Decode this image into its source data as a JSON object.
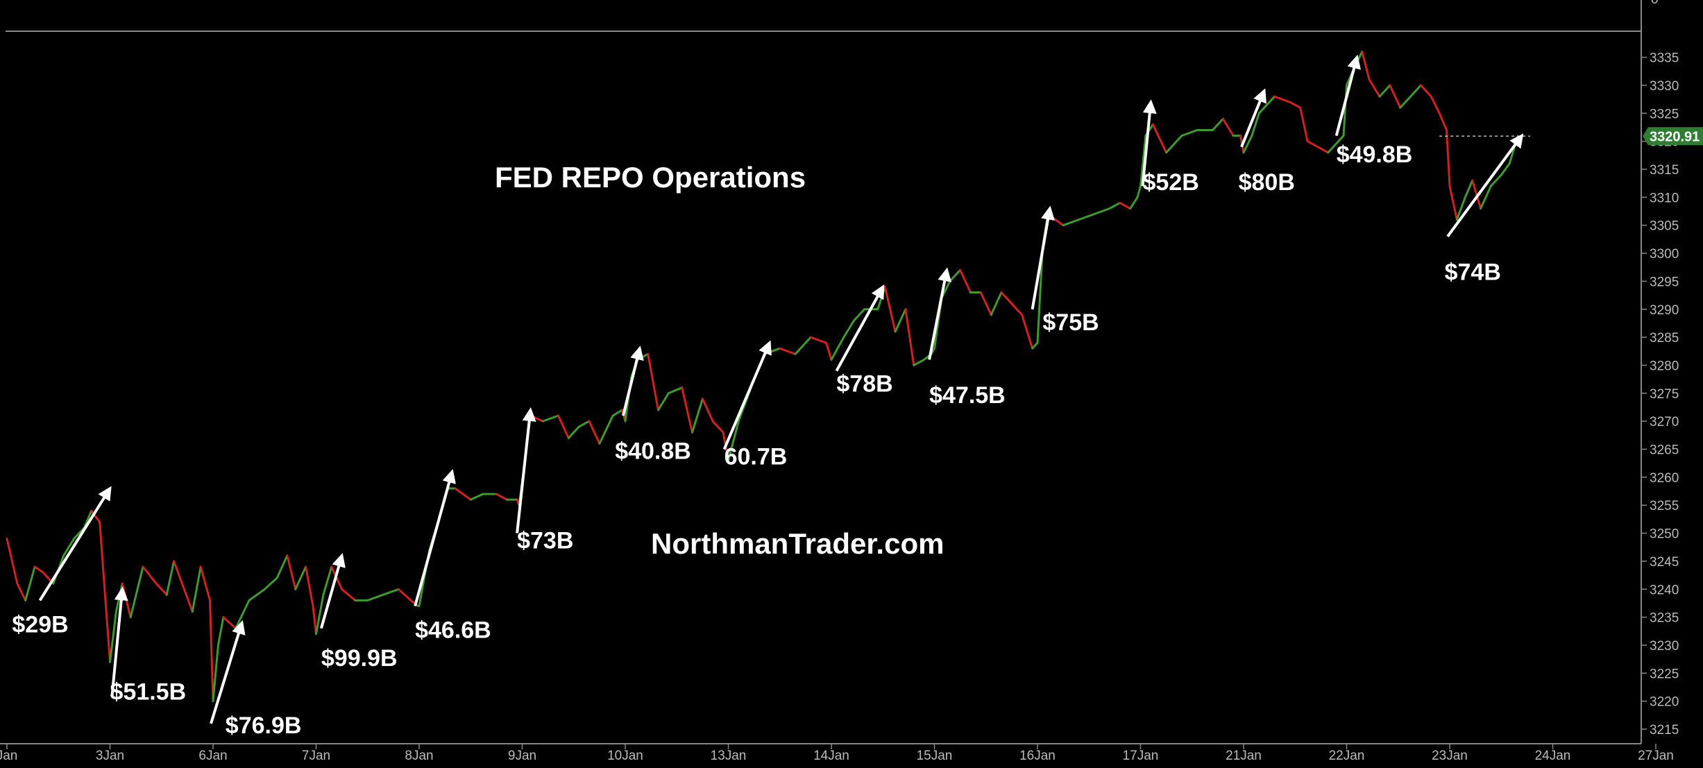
{
  "chart_data": {
    "type": "line",
    "title": "FED REPO Operations",
    "watermark": "NorthmanTrader.com",
    "ylim": [
      3213,
      3340
    ],
    "y_ticks": [
      3215,
      3220,
      3225,
      3230,
      3235,
      3240,
      3245,
      3250,
      3255,
      3260,
      3265,
      3270,
      3275,
      3280,
      3285,
      3290,
      3295,
      3300,
      3305,
      3310,
      3315,
      3320,
      3325,
      3330,
      3335
    ],
    "top_partial_tick": "0",
    "x_ticks": [
      "Jan",
      "3Jan",
      "6Jan",
      "7Jan",
      "8Jan",
      "9Jan",
      "10Jan",
      "13Jan",
      "14Jan",
      "15Jan",
      "16Jan",
      "17Jan",
      "21Jan",
      "22Jan",
      "23Jan",
      "24Jan",
      "27Jan"
    ],
    "last_price": "3320.91",
    "colors": {
      "up": "#3f9b2e",
      "down": "#d32020",
      "text": "#ffffff",
      "axis": "#bbbbbb",
      "price_tag_bg": "#2e7d32"
    },
    "price_path": [
      [
        0.0,
        3249
      ],
      [
        0.1,
        3241
      ],
      [
        0.18,
        3238
      ],
      [
        0.27,
        3244
      ],
      [
        0.35,
        3243
      ],
      [
        0.45,
        3241
      ],
      [
        0.55,
        3246
      ],
      [
        0.65,
        3249
      ],
      [
        0.75,
        3251
      ],
      [
        0.82,
        3254
      ],
      [
        0.9,
        3252
      ],
      [
        1.0,
        3227
      ],
      [
        1.06,
        3236
      ],
      [
        1.12,
        3241
      ],
      [
        1.2,
        3235
      ],
      [
        1.32,
        3244
      ],
      [
        1.45,
        3241
      ],
      [
        1.55,
        3239
      ],
      [
        1.62,
        3245
      ],
      [
        1.7,
        3241
      ],
      [
        1.8,
        3236
      ],
      [
        1.88,
        3244
      ],
      [
        1.97,
        3238
      ],
      [
        2.0,
        3220
      ],
      [
        2.05,
        3230
      ],
      [
        2.1,
        3235
      ],
      [
        2.22,
        3233
      ],
      [
        2.35,
        3238
      ],
      [
        2.5,
        3240
      ],
      [
        2.62,
        3242
      ],
      [
        2.72,
        3246
      ],
      [
        2.8,
        3240
      ],
      [
        2.9,
        3244
      ],
      [
        2.97,
        3237
      ],
      [
        3.0,
        3232
      ],
      [
        3.07,
        3239
      ],
      [
        3.15,
        3244
      ],
      [
        3.25,
        3240
      ],
      [
        3.38,
        3238
      ],
      [
        3.5,
        3238
      ],
      [
        3.65,
        3239
      ],
      [
        3.8,
        3240
      ],
      [
        3.92,
        3238
      ],
      [
        3.99,
        3237
      ],
      [
        4.0,
        3237
      ],
      [
        4.1,
        3247
      ],
      [
        4.2,
        3253
      ],
      [
        4.28,
        3258
      ],
      [
        4.35,
        3258
      ],
      [
        4.5,
        3256
      ],
      [
        4.62,
        3257
      ],
      [
        4.75,
        3257
      ],
      [
        4.85,
        3256
      ],
      [
        4.95,
        3256
      ],
      [
        4.97,
        3255
      ],
      [
        5.02,
        3262
      ],
      [
        5.08,
        3271
      ],
      [
        5.2,
        3270
      ],
      [
        5.35,
        3271
      ],
      [
        5.45,
        3267
      ],
      [
        5.55,
        3269
      ],
      [
        5.65,
        3270
      ],
      [
        5.75,
        3266
      ],
      [
        5.88,
        3271
      ],
      [
        5.97,
        3272
      ],
      [
        6.0,
        3270
      ],
      [
        6.06,
        3278
      ],
      [
        6.12,
        3281
      ],
      [
        6.22,
        3282
      ],
      [
        6.32,
        3272
      ],
      [
        6.42,
        3275
      ],
      [
        6.55,
        3276
      ],
      [
        6.65,
        3268
      ],
      [
        6.75,
        3274
      ],
      [
        6.85,
        3270
      ],
      [
        6.95,
        3268
      ],
      [
        7.0,
        3263
      ],
      [
        7.1,
        3270
      ],
      [
        7.22,
        3276
      ],
      [
        7.35,
        3282
      ],
      [
        7.5,
        3283
      ],
      [
        7.65,
        3282
      ],
      [
        7.8,
        3285
      ],
      [
        7.95,
        3284
      ],
      [
        8.0,
        3281
      ],
      [
        8.12,
        3285
      ],
      [
        8.22,
        3288
      ],
      [
        8.32,
        3290
      ],
      [
        8.45,
        3290
      ],
      [
        8.52,
        3294
      ],
      [
        8.62,
        3286
      ],
      [
        8.72,
        3290
      ],
      [
        8.8,
        3280
      ],
      [
        8.9,
        3281
      ],
      [
        8.97,
        3282
      ],
      [
        9.0,
        3283
      ],
      [
        9.07,
        3292
      ],
      [
        9.15,
        3295
      ],
      [
        9.25,
        3297
      ],
      [
        9.35,
        3293
      ],
      [
        9.45,
        3293
      ],
      [
        9.55,
        3289
      ],
      [
        9.65,
        3293
      ],
      [
        9.75,
        3291
      ],
      [
        9.85,
        3289
      ],
      [
        9.95,
        3283
      ],
      [
        10.0,
        3284
      ],
      [
        10.05,
        3301
      ],
      [
        10.1,
        3307
      ],
      [
        10.25,
        3305
      ],
      [
        10.4,
        3306
      ],
      [
        10.55,
        3307
      ],
      [
        10.7,
        3308
      ],
      [
        10.8,
        3309
      ],
      [
        10.9,
        3308
      ],
      [
        10.97,
        3310
      ],
      [
        11.0,
        3312
      ],
      [
        11.05,
        3321
      ],
      [
        11.12,
        3323
      ],
      [
        11.25,
        3318
      ],
      [
        11.4,
        3321
      ],
      [
        11.55,
        3322
      ],
      [
        11.7,
        3322
      ],
      [
        11.8,
        3324
      ],
      [
        11.9,
        3321
      ],
      [
        11.97,
        3321
      ],
      [
        12.0,
        3318
      ],
      [
        12.08,
        3321
      ],
      [
        12.15,
        3325
      ],
      [
        12.3,
        3328
      ],
      [
        12.45,
        3327
      ],
      [
        12.55,
        3326
      ],
      [
        12.62,
        3320
      ],
      [
        12.72,
        3319
      ],
      [
        12.82,
        3318
      ],
      [
        12.97,
        3321
      ],
      [
        13.0,
        3330
      ],
      [
        13.07,
        3333
      ],
      [
        13.15,
        3336
      ],
      [
        13.22,
        3331
      ],
      [
        13.32,
        3328
      ],
      [
        13.42,
        3330
      ],
      [
        13.52,
        3326
      ],
      [
        13.62,
        3328
      ],
      [
        13.72,
        3330
      ],
      [
        13.82,
        3328
      ],
      [
        13.9,
        3325
      ],
      [
        13.97,
        3322
      ],
      [
        14.0,
        3312
      ],
      [
        14.07,
        3306
      ],
      [
        14.15,
        3310
      ],
      [
        14.22,
        3313
      ],
      [
        14.3,
        3308
      ],
      [
        14.4,
        3312
      ],
      [
        14.5,
        3314
      ],
      [
        14.58,
        3316
      ],
      [
        14.66,
        3320.91
      ]
    ],
    "annotations": [
      {
        "label": "$29B",
        "from": [
          0.32,
          3238
        ],
        "to": [
          1.0,
          3258
        ],
        "label_at": [
          0.05,
          3234
        ]
      },
      {
        "label": "$51.5B",
        "from": [
          1.02,
          3221
        ],
        "to": [
          1.12,
          3240
        ],
        "label_at": [
          1.0,
          3222
        ]
      },
      {
        "label": "$76.9B",
        "from": [
          1.98,
          3216
        ],
        "to": [
          2.28,
          3234
        ],
        "label_at": [
          2.12,
          3216
        ]
      },
      {
        "label": "$99.9B",
        "from": [
          3.05,
          3233
        ],
        "to": [
          3.25,
          3246
        ],
        "label_at": [
          3.05,
          3228
        ]
      },
      {
        "label": "$46.6B",
        "from": [
          3.96,
          3237
        ],
        "to": [
          4.32,
          3261
        ],
        "label_at": [
          3.96,
          3233
        ]
      },
      {
        "label": "$73B",
        "from": [
          4.95,
          3250
        ],
        "to": [
          5.08,
          3272
        ],
        "label_at": [
          4.95,
          3249
        ]
      },
      {
        "label": "$40.8B",
        "from": [
          5.98,
          3271
        ],
        "to": [
          6.14,
          3283
        ],
        "label_at": [
          5.9,
          3265
        ]
      },
      {
        "label": "60.7B",
        "from": [
          6.96,
          3265
        ],
        "to": [
          7.4,
          3284
        ],
        "label_at": [
          6.96,
          3264
        ]
      },
      {
        "label": "$78B",
        "from": [
          8.05,
          3279
        ],
        "to": [
          8.5,
          3294
        ],
        "label_at": [
          8.05,
          3277
        ]
      },
      {
        "label": "$47.5B",
        "from": [
          8.95,
          3281
        ],
        "to": [
          9.12,
          3297
        ],
        "label_at": [
          8.95,
          3275
        ]
      },
      {
        "label": "$75B",
        "from": [
          9.95,
          3290
        ],
        "to": [
          10.12,
          3308
        ],
        "label_at": [
          10.05,
          3288
        ]
      },
      {
        "label": "$52B",
        "from": [
          11.02,
          3312
        ],
        "to": [
          11.1,
          3327
        ],
        "label_at": [
          11.02,
          3313
        ]
      },
      {
        "label": "$80B",
        "from": [
          11.98,
          3319
        ],
        "to": [
          12.2,
          3329
        ],
        "label_at": [
          11.95,
          3313
        ]
      },
      {
        "label": "$49.8B",
        "from": [
          12.9,
          3321
        ],
        "to": [
          13.1,
          3335
        ],
        "label_at": [
          12.9,
          3318
        ]
      },
      {
        "label": "$74B",
        "from": [
          13.98,
          3303
        ],
        "to": [
          14.7,
          3321
        ],
        "label_at": [
          13.95,
          3297
        ]
      }
    ]
  }
}
